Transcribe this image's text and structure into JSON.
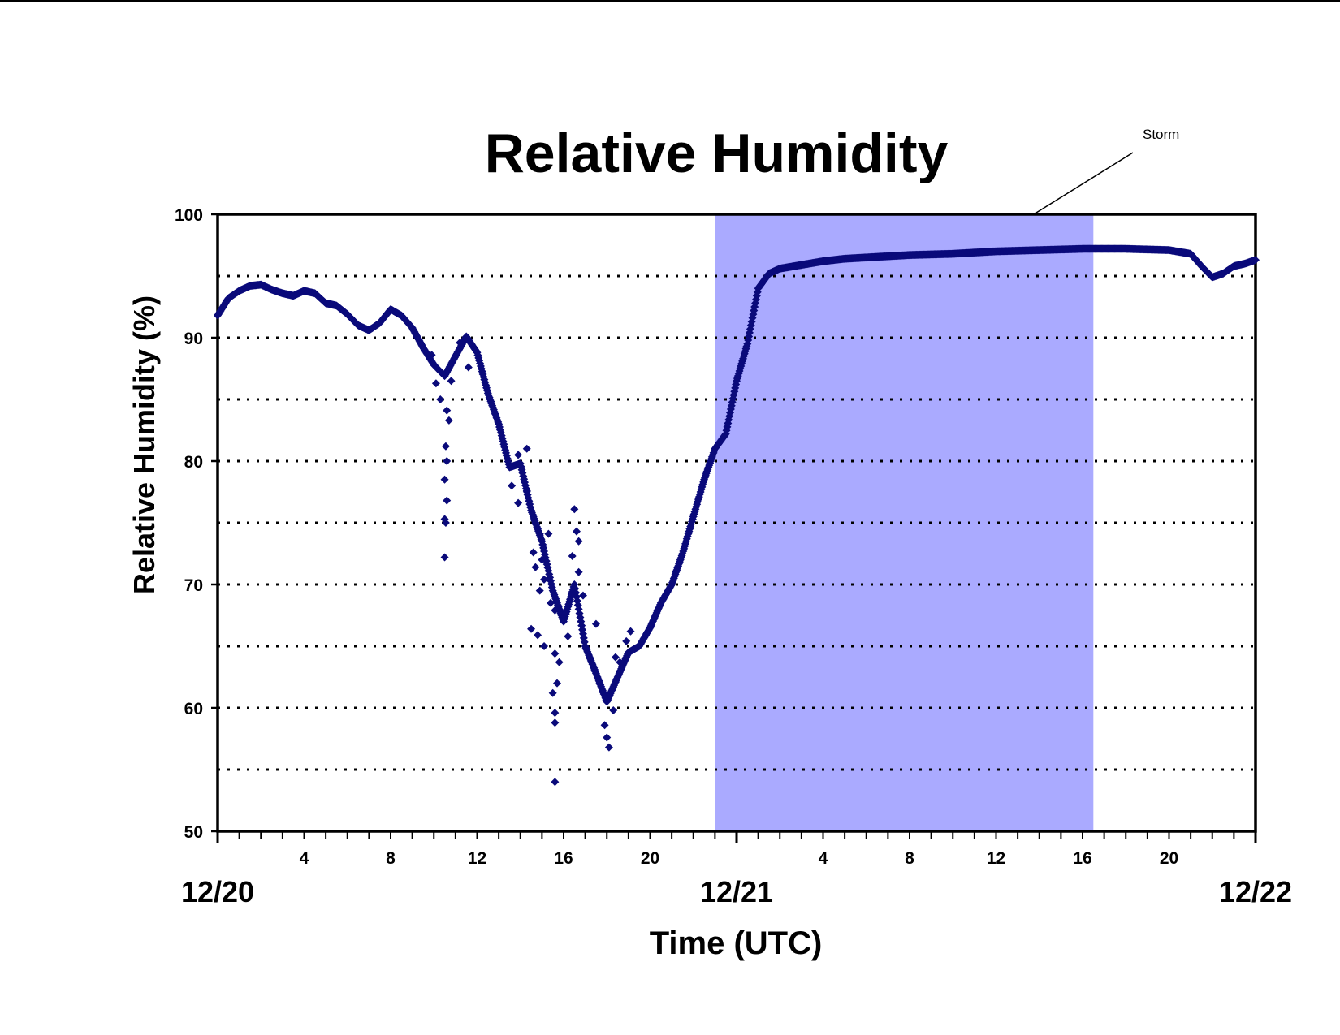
{
  "chart_data": {
    "type": "scatter",
    "title": "Relative Humidity",
    "xlabel": "Time (UTC)",
    "ylabel": "Relative Humidity (%)",
    "ylim": [
      50,
      100
    ],
    "yticks": [
      50,
      60,
      70,
      80,
      90,
      100
    ],
    "gridlines_y": [
      55,
      60,
      65,
      70,
      75,
      80,
      85,
      90,
      95
    ],
    "grid": "dotted horizontal",
    "x_unit": "hours since 12/20 00 UTC",
    "xlim": [
      0,
      48
    ],
    "hour_tick_labels": [
      {
        "hour": 4,
        "label": "4"
      },
      {
        "hour": 8,
        "label": "8"
      },
      {
        "hour": 12,
        "label": "12"
      },
      {
        "hour": 16,
        "label": "16"
      },
      {
        "hour": 20,
        "label": "20"
      },
      {
        "hour": 28,
        "label": "4"
      },
      {
        "hour": 32,
        "label": "8"
      },
      {
        "hour": 36,
        "label": "12"
      },
      {
        "hour": 40,
        "label": "16"
      },
      {
        "hour": 44,
        "label": "20"
      }
    ],
    "day_labels": [
      {
        "hour": 0,
        "label": "12/20"
      },
      {
        "hour": 24,
        "label": "12/21"
      },
      {
        "hour": 48,
        "label": "12/22"
      }
    ],
    "annotation": {
      "label": "Storm",
      "shaded_interval_hours": [
        23,
        40.5
      ],
      "shade_color": "#aaaaff"
    },
    "marker_color": "#0a0a7a",
    "series": [
      {
        "points": [
          [
            0,
            91.8
          ],
          [
            0.5,
            93.2
          ],
          [
            1,
            93.8
          ],
          [
            1.5,
            94.2
          ],
          [
            2,
            94.3
          ],
          [
            2.5,
            93.9
          ],
          [
            3,
            93.6
          ],
          [
            3.5,
            93.4
          ],
          [
            4,
            93.8
          ],
          [
            4.5,
            93.6
          ],
          [
            5,
            92.8
          ],
          [
            5.5,
            92.6
          ],
          [
            6,
            91.9
          ],
          [
            6.5,
            91.0
          ],
          [
            7,
            90.6
          ],
          [
            7.5,
            91.2
          ],
          [
            8,
            92.3
          ],
          [
            8.5,
            91.8
          ],
          [
            9,
            90.8
          ],
          [
            9.5,
            89.2
          ],
          [
            10,
            87.8
          ],
          [
            10.5,
            86.9
          ],
          [
            11,
            88.5
          ],
          [
            11.5,
            90.1
          ],
          [
            12,
            88.8
          ],
          [
            12.5,
            85.5
          ],
          [
            13,
            83.0
          ],
          [
            13.5,
            79.5
          ],
          [
            14,
            79.8
          ],
          [
            14.5,
            76.0
          ],
          [
            15,
            73.5
          ],
          [
            15.5,
            69.5
          ],
          [
            16,
            67.0
          ],
          [
            16.5,
            70.0
          ],
          [
            17,
            65.0
          ],
          [
            17.5,
            62.8
          ],
          [
            18,
            60.5
          ],
          [
            18.5,
            62.5
          ],
          [
            19,
            64.5
          ],
          [
            19.5,
            65.0
          ],
          [
            20,
            66.5
          ],
          [
            20.5,
            68.5
          ],
          [
            21,
            70.0
          ],
          [
            21.5,
            72.5
          ],
          [
            22,
            75.5
          ],
          [
            22.5,
            78.5
          ],
          [
            23,
            81.0
          ],
          [
            23.5,
            82.2
          ],
          [
            24,
            86.5
          ],
          [
            24.5,
            89.5
          ],
          [
            25,
            94.0
          ],
          [
            25.5,
            95.2
          ],
          [
            26,
            95.6
          ],
          [
            27,
            95.9
          ],
          [
            28,
            96.2
          ],
          [
            29,
            96.4
          ],
          [
            30,
            96.5
          ],
          [
            32,
            96.7
          ],
          [
            34,
            96.8
          ],
          [
            36,
            97.0
          ],
          [
            38,
            97.1
          ],
          [
            40,
            97.2
          ],
          [
            42,
            97.2
          ],
          [
            44,
            97.1
          ],
          [
            45,
            96.8
          ],
          [
            45.5,
            95.8
          ],
          [
            46,
            94.9
          ],
          [
            46.5,
            95.2
          ],
          [
            47,
            95.8
          ],
          [
            47.5,
            96.0
          ],
          [
            48,
            96.3
          ]
        ],
        "scatter_points": [
          [
            9.9,
            88.6
          ],
          [
            10.1,
            86.3
          ],
          [
            10.3,
            85.0
          ],
          [
            10.6,
            84.1
          ],
          [
            10.7,
            83.3
          ],
          [
            10.8,
            86.5
          ],
          [
            10.55,
            81.2
          ],
          [
            10.6,
            80.0
          ],
          [
            10.5,
            78.5
          ],
          [
            10.6,
            76.8
          ],
          [
            10.5,
            75.3
          ],
          [
            10.55,
            75.0
          ],
          [
            10.5,
            72.2
          ],
          [
            11.2,
            89.6
          ],
          [
            11.6,
            87.6
          ],
          [
            13.6,
            78.0
          ],
          [
            13.9,
            80.5
          ],
          [
            14.3,
            81.0
          ],
          [
            14.3,
            77.6
          ],
          [
            13.9,
            76.6
          ],
          [
            14.7,
            75.0
          ],
          [
            14.9,
            74.1
          ],
          [
            14.6,
            72.6
          ],
          [
            15.0,
            72.0
          ],
          [
            15.3,
            74.1
          ],
          [
            14.7,
            71.4
          ],
          [
            15.1,
            70.4
          ],
          [
            15.4,
            68.5
          ],
          [
            14.9,
            69.5
          ],
          [
            14.5,
            66.4
          ],
          [
            14.8,
            65.9
          ],
          [
            15.1,
            65.0
          ],
          [
            15.6,
            67.9
          ],
          [
            15.6,
            64.4
          ],
          [
            15.8,
            63.7
          ],
          [
            15.7,
            62.0
          ],
          [
            15.5,
            61.2
          ],
          [
            15.6,
            59.6
          ],
          [
            15.6,
            58.8
          ],
          [
            15.6,
            54.0
          ],
          [
            16.1,
            67.7
          ],
          [
            16.2,
            65.8
          ],
          [
            16.6,
            74.3
          ],
          [
            16.5,
            76.1
          ],
          [
            16.7,
            73.5
          ],
          [
            16.4,
            72.3
          ],
          [
            16.7,
            71.0
          ],
          [
            16.9,
            69.1
          ],
          [
            17.5,
            66.8
          ],
          [
            17.8,
            61.3
          ],
          [
            17.9,
            58.6
          ],
          [
            18.0,
            57.6
          ],
          [
            18.1,
            56.8
          ],
          [
            18.3,
            59.8
          ],
          [
            18.4,
            64.1
          ],
          [
            18.6,
            63.7
          ],
          [
            18.9,
            65.4
          ],
          [
            19.1,
            66.2
          ]
        ]
      }
    ]
  }
}
